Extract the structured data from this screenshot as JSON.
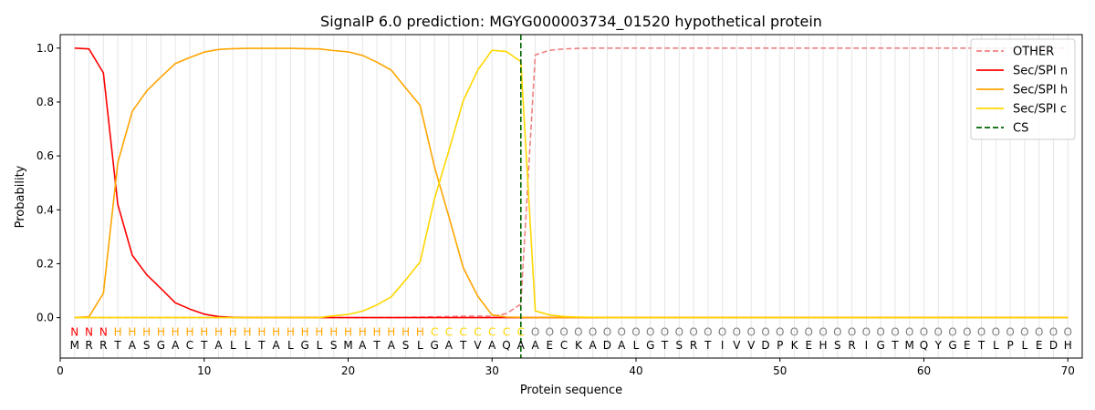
{
  "chart_data": {
    "type": "line",
    "title": "SignalP 6.0 prediction: MGYG000003734_01520 hypothetical protein",
    "xlabel": "Protein sequence",
    "ylabel": "Probability",
    "xlim": [
      0,
      71
    ],
    "ylim": [
      -0.15,
      1.05
    ],
    "x_ticks": [
      0,
      10,
      20,
      30,
      40,
      50,
      60,
      70
    ],
    "y_ticks": [
      0.0,
      0.2,
      0.4,
      0.6,
      0.8,
      1.0
    ],
    "x_tick_labels": [
      "0",
      "10",
      "20",
      "30",
      "40",
      "50",
      "60",
      "70"
    ],
    "y_tick_labels": [
      "0.0",
      "0.2",
      "0.4",
      "0.6",
      "0.8",
      "1.0"
    ],
    "legend_position": "top-right",
    "grid": "vertical lines at each residue",
    "sequence": [
      "M",
      "R",
      "R",
      "T",
      "A",
      "S",
      "G",
      "A",
      "C",
      "T",
      "A",
      "L",
      "L",
      "T",
      "A",
      "L",
      "G",
      "L",
      "S",
      "M",
      "A",
      "T",
      "A",
      "S",
      "L",
      "G",
      "A",
      "T",
      "V",
      "A",
      "Q",
      "A",
      "A",
      "E",
      "C",
      "K",
      "A",
      "D",
      "A",
      "L",
      "G",
      "T",
      "S",
      "R",
      "T",
      "I",
      "V",
      "V",
      "D",
      "P",
      "K",
      "E",
      "H",
      "S",
      "R",
      "I",
      "G",
      "T",
      "M",
      "Q",
      "Y",
      "G",
      "E",
      "T",
      "L",
      "P",
      "L",
      "E",
      "D",
      "H"
    ],
    "labels": [
      "N",
      "N",
      "N",
      "H",
      "H",
      "H",
      "H",
      "H",
      "H",
      "H",
      "H",
      "H",
      "H",
      "H",
      "H",
      "H",
      "H",
      "H",
      "H",
      "H",
      "H",
      "H",
      "H",
      "H",
      "H",
      "C",
      "C",
      "C",
      "C",
      "C",
      "C",
      "C",
      "O",
      "O",
      "O",
      "O",
      "O",
      "O",
      "O",
      "O",
      "O",
      "O",
      "O",
      "O",
      "O",
      "O",
      "O",
      "O",
      "O",
      "O",
      "O",
      "O",
      "O",
      "O",
      "O",
      "O",
      "O",
      "O",
      "O",
      "O",
      "O",
      "O",
      "O",
      "O",
      "O",
      "O",
      "O",
      "O",
      "O",
      "O"
    ],
    "label_colors": {
      "N": "#ff0000",
      "H": "#ffa500",
      "C": "#ffd700",
      "O": "#808080"
    },
    "cleavage_site": 32,
    "series": [
      {
        "name": "OTHER",
        "color": "#f08080",
        "style": "dashed",
        "values": [
          0,
          0,
          0,
          0,
          0,
          0,
          0,
          0,
          0,
          0,
          0,
          0,
          0,
          0,
          0,
          0,
          0,
          0,
          0,
          0,
          0,
          0,
          0,
          0.001,
          0.002,
          0.003,
          0.004,
          0.005,
          0.006,
          0.005,
          0.015,
          0.05,
          0.975,
          0.992,
          0.997,
          0.999,
          1,
          1,
          1,
          1,
          1,
          1,
          1,
          1,
          1,
          1,
          1,
          1,
          1,
          1,
          1,
          1,
          1,
          1,
          1,
          1,
          1,
          1,
          1,
          1,
          1,
          1,
          1,
          1,
          1,
          1,
          1,
          1,
          1,
          1
        ]
      },
      {
        "name": "Sec/SPI n",
        "color": "#ff0000",
        "style": "solid",
        "values": [
          1.0,
          0.997,
          0.908,
          0.42,
          0.232,
          0.16,
          0.108,
          0.055,
          0.032,
          0.013,
          0.004,
          0.001,
          0,
          0,
          0,
          0,
          0,
          0,
          0,
          0,
          0,
          0,
          0,
          0,
          0,
          0,
          0,
          0,
          0,
          0,
          0,
          0,
          0,
          0,
          0,
          0,
          0,
          0,
          0,
          0,
          0,
          0,
          0,
          0,
          0,
          0,
          0,
          0,
          0,
          0,
          0,
          0,
          0,
          0,
          0,
          0,
          0,
          0,
          0,
          0,
          0,
          0,
          0,
          0,
          0,
          0,
          0,
          0,
          0,
          0
        ]
      },
      {
        "name": "Sec/SPI h",
        "color": "#ffa500",
        "style": "solid",
        "values": [
          0,
          0.003,
          0.09,
          0.575,
          0.765,
          0.84,
          0.893,
          0.943,
          0.965,
          0.985,
          0.995,
          0.998,
          0.999,
          0.999,
          0.999,
          0.999,
          0.998,
          0.997,
          0.991,
          0.986,
          0.973,
          0.948,
          0.918,
          0.852,
          0.787,
          0.56,
          0.375,
          0.185,
          0.08,
          0.01,
          0.002,
          0.001,
          0,
          0,
          0,
          0,
          0,
          0,
          0,
          0,
          0,
          0,
          0,
          0,
          0,
          0,
          0,
          0,
          0,
          0,
          0,
          0,
          0,
          0,
          0,
          0,
          0,
          0,
          0,
          0,
          0,
          0,
          0,
          0,
          0,
          0,
          0,
          0,
          0,
          0
        ]
      },
      {
        "name": "Sec/SPI c",
        "color": "#ffd700",
        "style": "solid",
        "values": [
          0,
          0,
          0,
          0,
          0,
          0,
          0,
          0,
          0,
          0,
          0,
          0,
          0,
          0,
          0,
          0,
          0,
          0,
          0.007,
          0.012,
          0.024,
          0.047,
          0.077,
          0.14,
          0.207,
          0.44,
          0.62,
          0.805,
          0.918,
          0.992,
          0.987,
          0.95,
          0.025,
          0.01,
          0.004,
          0.002,
          0.001,
          0,
          0,
          0,
          0,
          0,
          0,
          0,
          0,
          0,
          0,
          0,
          0,
          0,
          0,
          0,
          0,
          0,
          0,
          0,
          0,
          0,
          0,
          0,
          0,
          0,
          0,
          0,
          0,
          0,
          0,
          0,
          0,
          0
        ]
      },
      {
        "name": "CS",
        "color": "#006400",
        "style": "dashed",
        "x": 32
      }
    ]
  }
}
